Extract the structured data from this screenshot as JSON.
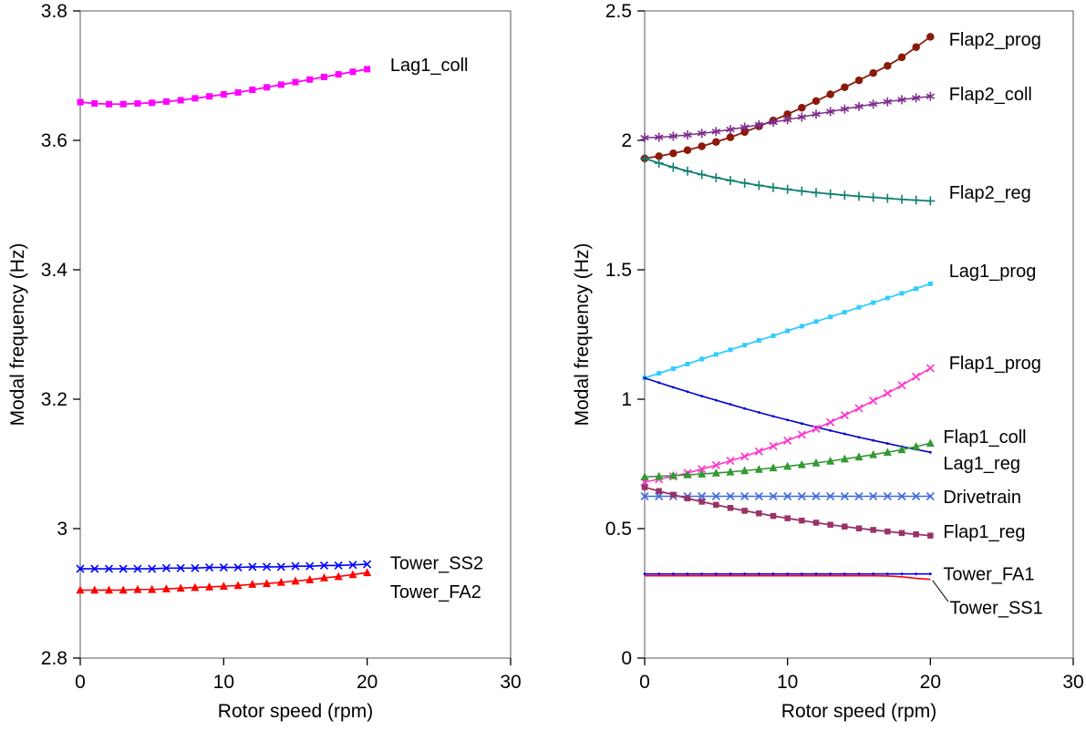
{
  "figure": {
    "background": "#FFFFFF"
  },
  "chart_data": [
    {
      "type": "line",
      "xlabel": "Rotor speed (rpm)",
      "ylabel": "Modal frequency (Hz)",
      "xlim": [
        0,
        30
      ],
      "ylim": [
        2.8,
        3.8
      ],
      "xticks": [
        0,
        10,
        20,
        30
      ],
      "xtick_labels": [
        "0",
        "10",
        "20",
        "30"
      ],
      "yticks": [
        2.8,
        3.0,
        3.2,
        3.4,
        3.6,
        3.8
      ],
      "ytick_labels": [
        "2.8",
        "3",
        "3.2",
        "3.4",
        "3.6",
        "3.8"
      ],
      "grid": false,
      "legend": "inline-labels",
      "x": [
        0,
        1,
        2,
        3,
        4,
        5,
        6,
        7,
        8,
        9,
        10,
        11,
        12,
        13,
        14,
        15,
        16,
        17,
        18,
        19,
        20
      ],
      "series": [
        {
          "name": "Lag1_coll",
          "color": "#FF00FF",
          "marker": "square",
          "marker_size": 7,
          "line_width": 1.8,
          "y": [
            3.659,
            3.657,
            3.656,
            3.656,
            3.657,
            3.658,
            3.66,
            3.662,
            3.665,
            3.668,
            3.671,
            3.674,
            3.678,
            3.682,
            3.686,
            3.69,
            3.694,
            3.698,
            3.702,
            3.706,
            3.71
          ],
          "label": {
            "text": "Lag1_coll",
            "x": 21.6,
            "y": 3.717
          }
        },
        {
          "name": "Tower_SS2",
          "color": "#0000FF",
          "marker": "x",
          "marker_size": 8,
          "line_width": 1.6,
          "y": [
            2.938,
            2.938,
            2.938,
            2.938,
            2.938,
            2.938,
            2.939,
            2.939,
            2.939,
            2.94,
            2.94,
            2.94,
            2.941,
            2.941,
            2.941,
            2.942,
            2.942,
            2.943,
            2.943,
            2.944,
            2.945
          ],
          "label": {
            "text": "Tower_SS2",
            "x": 21.6,
            "y": 2.947
          }
        },
        {
          "name": "Tower_FA2",
          "color": "#FF0000",
          "marker": "triangle",
          "marker_size": 9,
          "line_width": 1.6,
          "y": [
            2.905,
            2.905,
            2.905,
            2.905,
            2.906,
            2.906,
            2.907,
            2.908,
            2.909,
            2.91,
            2.911,
            2.912,
            2.914,
            2.915,
            2.917,
            2.919,
            2.921,
            2.924,
            2.926,
            2.929,
            2.932
          ],
          "label": {
            "text": "Tower_FA2",
            "x": 21.6,
            "y": 2.903
          }
        }
      ]
    },
    {
      "type": "line",
      "xlabel": "Rotor speed (rpm)",
      "ylabel": "Modal frequency (Hz)",
      "xlim": [
        0,
        30
      ],
      "ylim": [
        0,
        2.5
      ],
      "xticks": [
        0,
        10,
        20,
        30
      ],
      "xtick_labels": [
        "0",
        "10",
        "20",
        "30"
      ],
      "yticks": [
        0,
        0.5,
        1.0,
        1.5,
        2.0,
        2.5
      ],
      "ytick_labels": [
        "0",
        "0.5",
        "1",
        "1.5",
        "2",
        "2.5"
      ],
      "grid": false,
      "legend": "inline-labels",
      "x": [
        0,
        1,
        2,
        3,
        4,
        5,
        6,
        7,
        8,
        9,
        10,
        11,
        12,
        13,
        14,
        15,
        16,
        17,
        18,
        19,
        20
      ],
      "series": [
        {
          "name": "Flap2_prog",
          "color": "#8B1A0A",
          "marker": "circle",
          "marker_size": 8.5,
          "line_width": 1.8,
          "y": [
            1.93,
            1.939,
            1.95,
            1.962,
            1.977,
            1.994,
            2.012,
            2.032,
            2.054,
            2.077,
            2.101,
            2.126,
            2.152,
            2.178,
            2.205,
            2.232,
            2.26,
            2.288,
            2.321,
            2.36,
            2.4
          ],
          "label": {
            "text": "Flap2_prog",
            "x": 21.3,
            "y": 2.39
          }
        },
        {
          "name": "Flap2_coll",
          "color": "#7D2E8D",
          "marker": "asterisk",
          "marker_size": 10,
          "line_width": 1.5,
          "y": [
            2.01,
            2.012,
            2.016,
            2.021,
            2.027,
            2.034,
            2.042,
            2.051,
            2.06,
            2.07,
            2.08,
            2.09,
            2.101,
            2.111,
            2.121,
            2.131,
            2.14,
            2.149,
            2.157,
            2.164,
            2.17
          ],
          "label": {
            "text": "Flap2_coll",
            "x": 21.3,
            "y": 2.18
          }
        },
        {
          "name": "Flap2_reg",
          "color": "#0F7F6F",
          "marker": "plus",
          "marker_size": 10,
          "line_width": 1.8,
          "y": [
            1.93,
            1.912,
            1.896,
            1.881,
            1.868,
            1.856,
            1.845,
            1.835,
            1.826,
            1.818,
            1.811,
            1.804,
            1.798,
            1.793,
            1.788,
            1.784,
            1.78,
            1.776,
            1.772,
            1.769,
            1.766
          ],
          "label": {
            "text": "Flap2_reg",
            "x": 21.3,
            "y": 1.8
          }
        },
        {
          "name": "Lag1_prog",
          "color": "#33CCFF",
          "marker": "square",
          "marker_size": 5,
          "line_width": 1.8,
          "y": [
            1.082,
            1.1,
            1.118,
            1.136,
            1.155,
            1.173,
            1.191,
            1.209,
            1.227,
            1.245,
            1.264,
            1.282,
            1.3,
            1.318,
            1.336,
            1.355,
            1.373,
            1.391,
            1.409,
            1.427,
            1.446
          ],
          "label": {
            "text": "Lag1_prog",
            "x": 21.3,
            "y": 1.497
          }
        },
        {
          "name": "Lag1_reg",
          "color": "#0000CD",
          "marker": "dot",
          "marker_size": 3.5,
          "line_width": 1.6,
          "y": [
            1.082,
            1.064,
            1.046,
            1.029,
            1.012,
            0.996,
            0.98,
            0.964,
            0.949,
            0.934,
            0.92,
            0.906,
            0.892,
            0.879,
            0.866,
            0.853,
            0.841,
            0.829,
            0.817,
            0.806,
            0.795
          ],
          "label": {
            "text": "Lag1_reg",
            "x": 20.9,
            "y": 0.754
          }
        },
        {
          "name": "Flap1_prog",
          "color": "#FF33CC",
          "marker": "x",
          "marker_size": 8,
          "line_width": 1.6,
          "y": [
            0.68,
            0.691,
            0.702,
            0.715,
            0.73,
            0.745,
            0.762,
            0.779,
            0.798,
            0.819,
            0.84,
            0.863,
            0.886,
            0.911,
            0.938,
            0.965,
            0.994,
            1.023,
            1.054,
            1.087,
            1.12
          ],
          "label": {
            "text": "Flap1_prog",
            "x": 21.3,
            "y": 1.14
          }
        },
        {
          "name": "Flap1_coll",
          "color": "#339933",
          "marker": "triangle",
          "marker_size": 9,
          "line_width": 1.6,
          "y": [
            0.7,
            0.702,
            0.705,
            0.708,
            0.711,
            0.715,
            0.719,
            0.724,
            0.729,
            0.735,
            0.741,
            0.747,
            0.754,
            0.761,
            0.769,
            0.777,
            0.786,
            0.795,
            0.805,
            0.817,
            0.83
          ],
          "label": {
            "text": "Flap1_coll",
            "x": 20.9,
            "y": 0.856
          }
        },
        {
          "name": "Drivetrain",
          "color": "#4169E1",
          "marker": "x",
          "marker_size": 8,
          "line_width": 1.6,
          "y": [
            0.625,
            0.625,
            0.625,
            0.625,
            0.625,
            0.625,
            0.625,
            0.625,
            0.625,
            0.625,
            0.625,
            0.625,
            0.625,
            0.625,
            0.625,
            0.625,
            0.625,
            0.625,
            0.625,
            0.625,
            0.625
          ],
          "label": {
            "text": "Drivetrain",
            "x": 20.9,
            "y": 0.624
          }
        },
        {
          "name": "Flap1_reg",
          "color": "#993366",
          "marker": "square",
          "marker_size": 6.5,
          "line_width": 1.8,
          "y": [
            0.66,
            0.645,
            0.631,
            0.617,
            0.604,
            0.592,
            0.58,
            0.569,
            0.559,
            0.549,
            0.54,
            0.531,
            0.523,
            0.515,
            0.508,
            0.501,
            0.495,
            0.489,
            0.483,
            0.478,
            0.473
          ],
          "label": {
            "text": "Flap1_reg",
            "x": 20.9,
            "y": 0.49
          }
        },
        {
          "name": "Tower_FA1",
          "color": "#0000FF",
          "marker": "dot",
          "marker_size": 3,
          "line_width": 1.6,
          "y": [
            0.325,
            0.325,
            0.325,
            0.325,
            0.325,
            0.325,
            0.325,
            0.325,
            0.325,
            0.325,
            0.325,
            0.325,
            0.325,
            0.325,
            0.325,
            0.325,
            0.325,
            0.325,
            0.325,
            0.325,
            0.325
          ],
          "label": {
            "text": "Tower_FA1",
            "x": 20.9,
            "y": 0.326
          }
        },
        {
          "name": "Tower_SS1",
          "color": "#FF0000",
          "marker": "none",
          "marker_size": 3,
          "line_width": 1.6,
          "y": [
            0.318,
            0.318,
            0.318,
            0.318,
            0.318,
            0.318,
            0.318,
            0.318,
            0.318,
            0.318,
            0.318,
            0.318,
            0.318,
            0.318,
            0.318,
            0.318,
            0.318,
            0.317,
            0.314,
            0.308,
            0.304
          ],
          "label": {
            "text": "Tower_SS1",
            "x": 21.35,
            "y": 0.195
          },
          "leader": {
            "x1": 20.15,
            "y1": 0.3,
            "x2": 21.25,
            "y2": 0.218
          }
        }
      ]
    }
  ]
}
